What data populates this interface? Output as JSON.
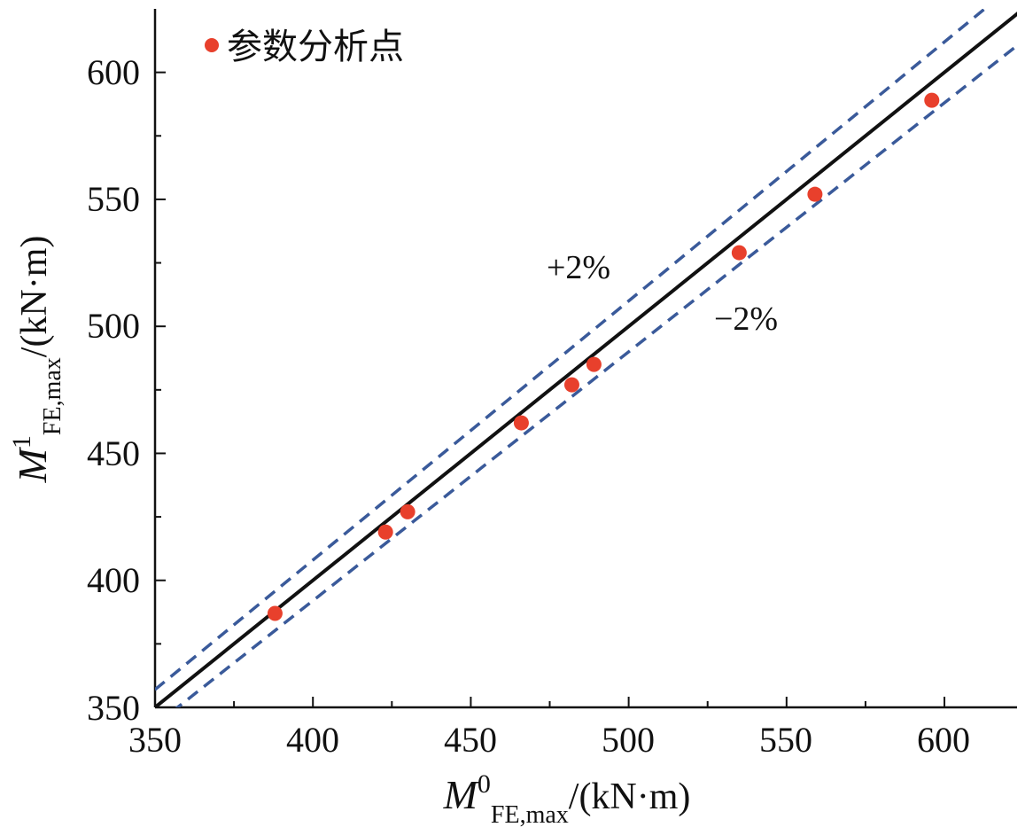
{
  "chart_data": {
    "type": "scatter",
    "x_axis": {
      "label_main": "M",
      "label_sup": "0",
      "label_sub": "FE,max",
      "label_unit": "/(kN·m)",
      "range": [
        350,
        623
      ],
      "ticks": [
        350,
        400,
        450,
        500,
        550,
        600
      ],
      "tick_labels": [
        "350",
        "400",
        "450",
        "500",
        "550",
        "600"
      ]
    },
    "y_axis": {
      "label_main": "M",
      "label_sup": "1",
      "label_sub": "FE,max",
      "label_unit": "/(kN·m)",
      "range": [
        350,
        625
      ],
      "ticks": [
        350,
        400,
        450,
        500,
        550,
        600
      ],
      "tick_labels": [
        "350",
        "400",
        "450",
        "500",
        "550",
        "600"
      ]
    },
    "legend": {
      "label": "参数分析点",
      "placement": "top-left"
    },
    "series": [
      {
        "name": "参数分析点",
        "color": "#e8402c",
        "x": [
          388,
          423,
          430,
          466,
          482,
          489,
          535,
          559,
          596
        ],
        "y": [
          387,
          419,
          427,
          462,
          477,
          485,
          529,
          552,
          589
        ]
      }
    ],
    "reference_lines": [
      {
        "kind": "y=x",
        "factor": 1.0,
        "style": "solid",
        "color": "#111111"
      },
      {
        "kind": "+2%",
        "factor": 1.02,
        "style": "dashed",
        "color": "#3a5a9a",
        "label": "+2%"
      },
      {
        "kind": "-2%",
        "factor": 0.98,
        "style": "dashed",
        "color": "#3a5a9a",
        "label": "−2%"
      }
    ],
    "grid": false
  }
}
